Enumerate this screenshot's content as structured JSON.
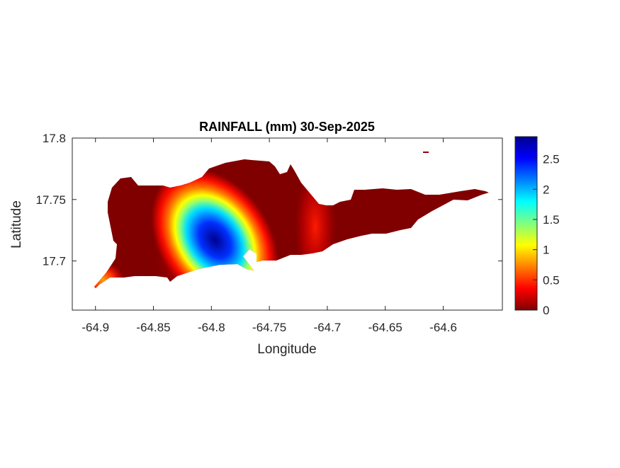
{
  "chart_data": {
    "type": "heatmap",
    "title": "RAINFALL (mm) 30-Sep-2025",
    "xlabel": "Longitude",
    "ylabel": "Latitude",
    "xlim": [
      -64.92,
      -64.549
    ],
    "ylim": [
      17.66,
      17.8
    ],
    "xticks": [
      -64.9,
      -64.85,
      -64.8,
      -64.75,
      -64.7,
      -64.65,
      -64.6
    ],
    "xtick_labels": [
      "-64.9",
      "-64.85",
      "-64.8",
      "-64.75",
      "-64.7",
      "-64.65",
      "-64.6"
    ],
    "yticks": [
      17.7,
      17.75,
      17.8
    ],
    "ytick_labels": [
      "17.7",
      "17.75",
      "17.8"
    ],
    "colormap": "jet",
    "clim": [
      0,
      2.87
    ],
    "colorbar_ticks": [
      0,
      0.5,
      1,
      1.5,
      2,
      2.5
    ],
    "colorbar_tick_labels": [
      "0",
      "0.5",
      "1",
      "1.5",
      "2",
      "2.5"
    ],
    "peak": {
      "lon": -64.797,
      "lat": 17.717,
      "value": 2.87
    },
    "grid": false,
    "colors": {
      "low": "#800000",
      "high": "#00008f"
    }
  }
}
